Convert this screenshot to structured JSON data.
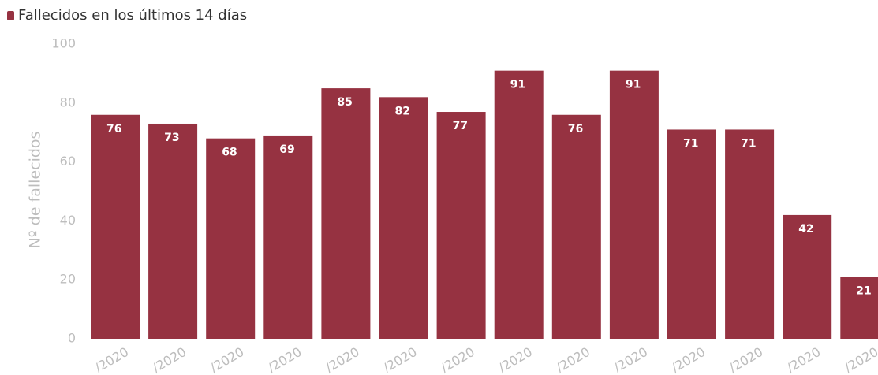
{
  "legend": {
    "label": "Fallecidos en los últimos 14 días",
    "color": "#963241"
  },
  "chart_data": {
    "type": "bar",
    "title": "",
    "xlabel": "",
    "ylabel": "Nº de fallecidos",
    "ylim": [
      0,
      100
    ],
    "yticks": [
      0,
      20,
      40,
      60,
      80,
      100
    ],
    "grid": false,
    "legend_position": "top-left",
    "categories": [
      "/2020",
      "/2020",
      "/2020",
      "/2020",
      "/2020",
      "/2020",
      "/2020",
      "/2020",
      "/2020",
      "/2020",
      "/2020",
      "/2020",
      "/2020",
      "/2020"
    ],
    "series": [
      {
        "name": "Fallecidos en los últimos 14 días",
        "color": "#963241",
        "values": [
          76,
          73,
          68,
          69,
          85,
          82,
          77,
          91,
          76,
          91,
          71,
          71,
          42,
          21
        ]
      }
    ]
  }
}
